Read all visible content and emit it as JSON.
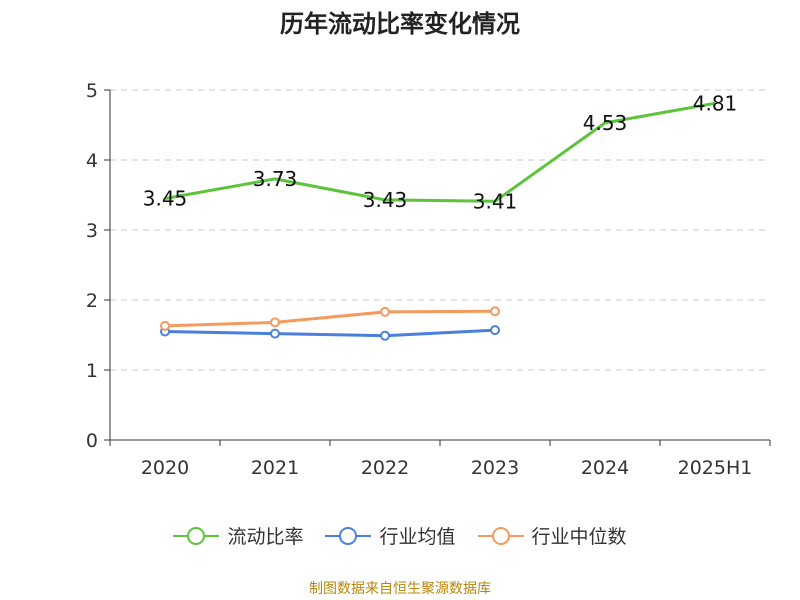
{
  "chart_data": {
    "type": "line",
    "title": "历年流动比率变化情况",
    "categories": [
      "2020",
      "2021",
      "2022",
      "2023",
      "2024",
      "2025H1"
    ],
    "ylim": [
      0,
      5
    ],
    "yticks": [
      "0",
      "1",
      "2",
      "3",
      "4",
      "5"
    ],
    "grid": true,
    "legend_position": "bottom",
    "series": [
      {
        "name": "流动比率",
        "color": "#5bc43a",
        "values": [
          3.45,
          3.73,
          3.43,
          3.41,
          4.53,
          4.81
        ],
        "labels": [
          "3.45",
          "3.73",
          "3.43",
          "3.41",
          "4.53",
          "4.81"
        ],
        "markers": false
      },
      {
        "name": "行业均值",
        "color": "#4a7fe0",
        "values": [
          1.55,
          1.52,
          1.49,
          1.57,
          null,
          null
        ],
        "markers": true
      },
      {
        "name": "行业中位数",
        "color": "#f59a5e",
        "values": [
          1.63,
          1.68,
          1.83,
          1.84,
          null,
          null
        ],
        "markers": true
      }
    ]
  },
  "legend": [
    {
      "label": "流动比率",
      "color": "#5bc43a"
    },
    {
      "label": "行业均值",
      "color": "#4a7fe0"
    },
    {
      "label": "行业中位数",
      "color": "#f59a5e"
    }
  ],
  "source_note": "制图数据来自恒生聚源数据库"
}
